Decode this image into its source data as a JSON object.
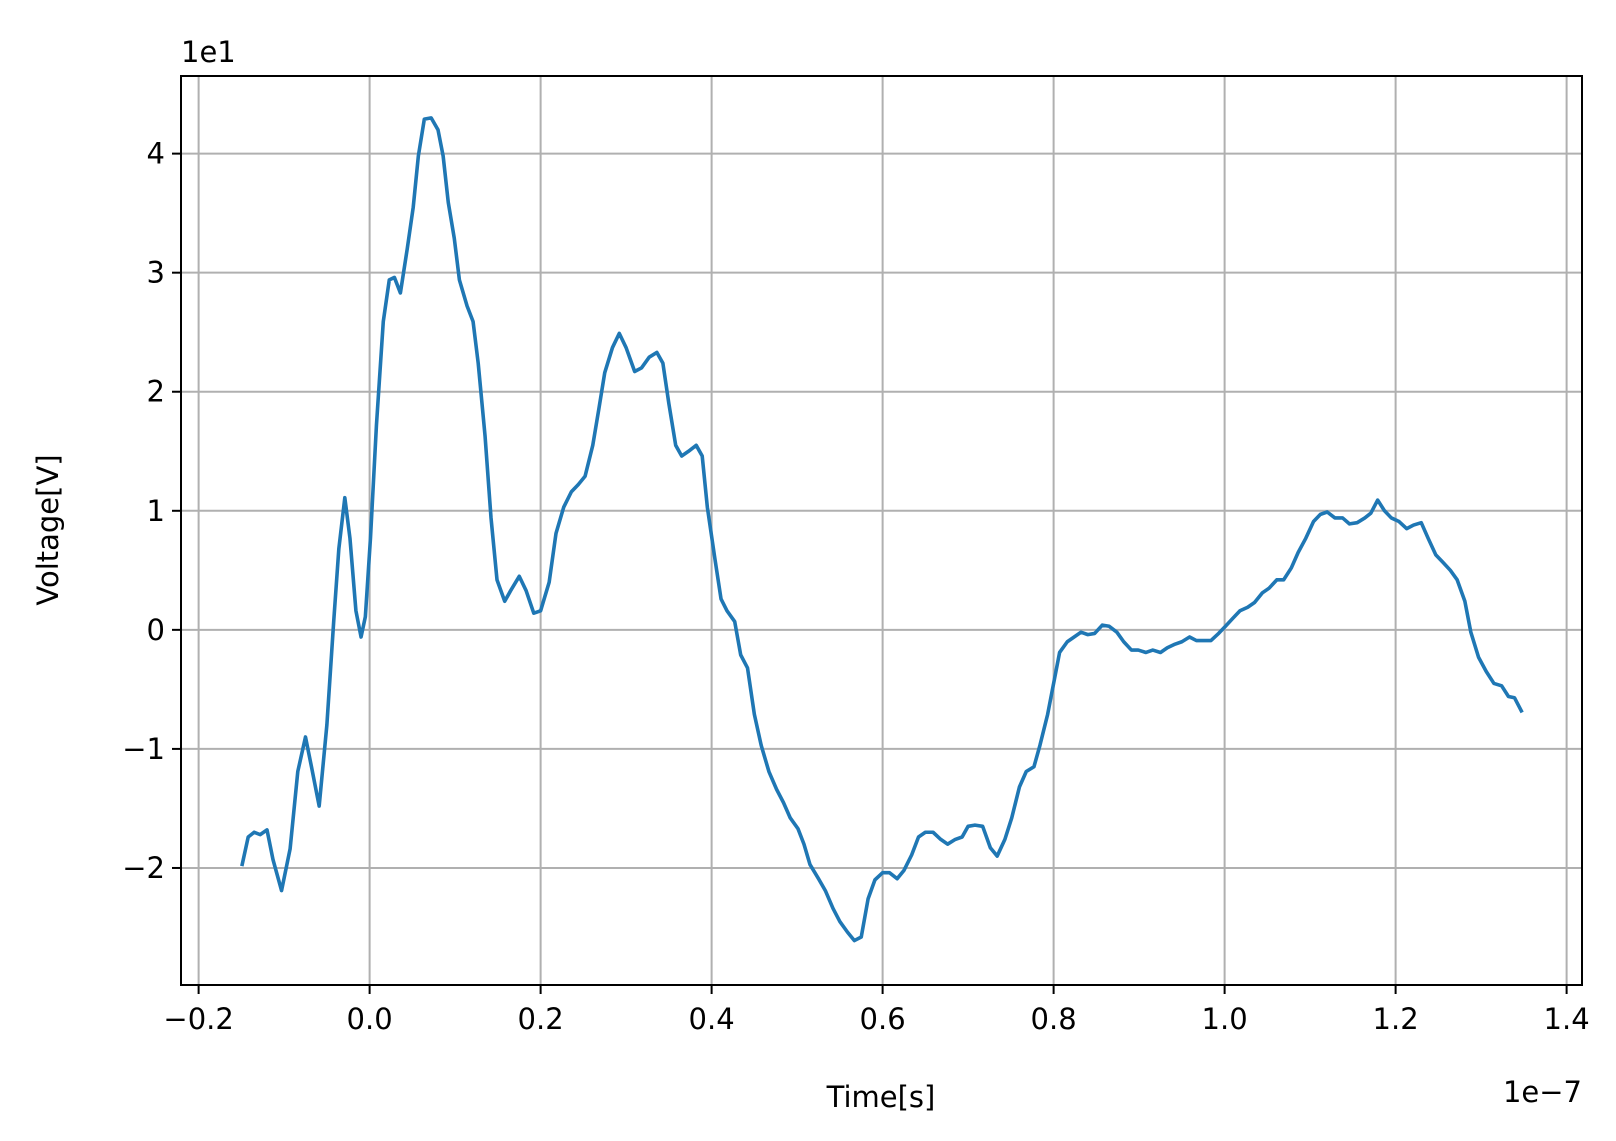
{
  "chart_data": {
    "type": "line",
    "x_label": "Time[s]",
    "y_label": "Voltage[V]",
    "x_offset_label": "1e−7",
    "y_offset_label": "1e1",
    "xlim": [
      -0.2206,
      1.418
    ],
    "ylim": [
      -2.983,
      4.652
    ],
    "xticks": [
      {
        "value": -0.2,
        "label": "−0.2"
      },
      {
        "value": 0,
        "label": "0.0"
      },
      0.2,
      0.4,
      0.6,
      0.8,
      {
        "value": 1,
        "label": "1.0"
      },
      1.2,
      1.4
    ],
    "yticks": [
      {
        "value": -2,
        "label": "−2"
      },
      {
        "value": -1,
        "label": "−1"
      },
      0,
      1,
      2,
      3,
      4
    ],
    "grid": true,
    "x": [
      -0.149,
      -0.142,
      -0.135,
      -0.128,
      -0.12,
      -0.113,
      -0.103,
      -0.093,
      -0.084,
      -0.075,
      -0.068,
      -0.059,
      -0.05,
      -0.042,
      -0.036,
      -0.029,
      -0.023,
      -0.016,
      -0.01,
      -0.005,
      0.001,
      0.008,
      0.016,
      0.023,
      0.029,
      0.036,
      0.044,
      0.051,
      0.057,
      0.064,
      0.072,
      0.08,
      0.086,
      0.092,
      0.099,
      0.105,
      0.114,
      0.121,
      0.127,
      0.135,
      0.142,
      0.149,
      0.158,
      0.165,
      0.175,
      0.183,
      0.192,
      0.2,
      0.21,
      0.218,
      0.227,
      0.236,
      0.244,
      0.252,
      0.261,
      0.268,
      0.275,
      0.284,
      0.292,
      0.3,
      0.31,
      0.318,
      0.327,
      0.336,
      0.343,
      0.35,
      0.358,
      0.365,
      0.373,
      0.382,
      0.389,
      0.395,
      0.404,
      0.411,
      0.418,
      0.427,
      0.434,
      0.442,
      0.45,
      0.458,
      0.467,
      0.476,
      0.484,
      0.492,
      0.501,
      0.508,
      0.515,
      0.525,
      0.533,
      0.542,
      0.55,
      0.559,
      0.567,
      0.575,
      0.583,
      0.591,
      0.6,
      0.608,
      0.617,
      0.625,
      0.634,
      0.642,
      0.65,
      0.659,
      0.668,
      0.676,
      0.685,
      0.693,
      0.7,
      0.708,
      0.717,
      0.726,
      0.734,
      0.743,
      0.751,
      0.76,
      0.768,
      0.777,
      0.784,
      0.793,
      0.8,
      0.807,
      0.816,
      0.824,
      0.832,
      0.84,
      0.848,
      0.857,
      0.865,
      0.874,
      0.882,
      0.891,
      0.899,
      0.908,
      0.916,
      0.925,
      0.933,
      0.942,
      0.95,
      0.959,
      0.967,
      0.976,
      0.984,
      0.993,
      1.001,
      1.01,
      1.018,
      1.027,
      1.035,
      1.044,
      1.052,
      1.061,
      1.069,
      1.078,
      1.086,
      1.095,
      1.104,
      1.112,
      1.12,
      1.129,
      1.138,
      1.146,
      1.155,
      1.164,
      1.171,
      1.179,
      1.187,
      1.195,
      1.204,
      1.213,
      1.221,
      1.23,
      1.238,
      1.247,
      1.255,
      1.264,
      1.272,
      1.281,
      1.288,
      1.297,
      1.306,
      1.315,
      1.324,
      1.332,
      1.339,
      1.347
    ],
    "series": [
      {
        "color": "#1f77b4",
        "values": [
          -1.97,
          -1.74,
          -1.7,
          -1.72,
          -1.68,
          -1.93,
          -2.19,
          -1.84,
          -1.19,
          -0.9,
          -1.15,
          -1.48,
          -0.8,
          0.07,
          0.68,
          1.11,
          0.77,
          0.16,
          -0.06,
          0.11,
          0.77,
          1.72,
          2.59,
          2.94,
          2.96,
          2.83,
          3.2,
          3.55,
          3.98,
          4.29,
          4.3,
          4.2,
          3.98,
          3.59,
          3.29,
          2.94,
          2.72,
          2.59,
          2.24,
          1.63,
          0.94,
          0.42,
          0.24,
          0.33,
          0.45,
          0.33,
          0.14,
          0.16,
          0.4,
          0.81,
          1.03,
          1.16,
          1.22,
          1.29,
          1.55,
          1.85,
          2.16,
          2.37,
          2.49,
          2.37,
          2.17,
          2.2,
          2.29,
          2.33,
          2.24,
          1.9,
          1.55,
          1.46,
          1.5,
          1.55,
          1.46,
          1.03,
          0.59,
          0.26,
          0.16,
          0.07,
          -0.21,
          -0.32,
          -0.71,
          -0.97,
          -1.19,
          -1.34,
          -1.45,
          -1.58,
          -1.67,
          -1.8,
          -1.97,
          -2.09,
          -2.19,
          -2.34,
          -2.45,
          -2.54,
          -2.61,
          -2.58,
          -2.26,
          -2.1,
          -2.04,
          -2.04,
          -2.09,
          -2.02,
          -1.89,
          -1.74,
          -1.7,
          -1.7,
          -1.76,
          -1.8,
          -1.76,
          -1.74,
          -1.65,
          -1.64,
          -1.65,
          -1.83,
          -1.9,
          -1.76,
          -1.58,
          -1.32,
          -1.19,
          -1.15,
          -0.97,
          -0.71,
          -0.45,
          -0.19,
          -0.1,
          -0.06,
          -0.02,
          -0.04,
          -0.03,
          0.04,
          0.03,
          -0.02,
          -0.1,
          -0.17,
          -0.17,
          -0.19,
          -0.17,
          -0.19,
          -0.15,
          -0.12,
          -0.1,
          -0.06,
          -0.09,
          -0.09,
          -0.09,
          -0.03,
          0.03,
          0.1,
          0.16,
          0.19,
          0.23,
          0.31,
          0.35,
          0.42,
          0.42,
          0.52,
          0.65,
          0.77,
          0.91,
          0.97,
          0.99,
          0.94,
          0.94,
          0.89,
          0.9,
          0.94,
          0.98,
          1.09,
          1,
          0.94,
          0.91,
          0.85,
          0.88,
          0.9,
          0.77,
          0.63,
          0.57,
          0.5,
          0.42,
          0.24,
          -0.02,
          -0.23,
          -0.35,
          -0.45,
          -0.47,
          -0.56,
          -0.57,
          -0.68
        ]
      }
    ]
  }
}
